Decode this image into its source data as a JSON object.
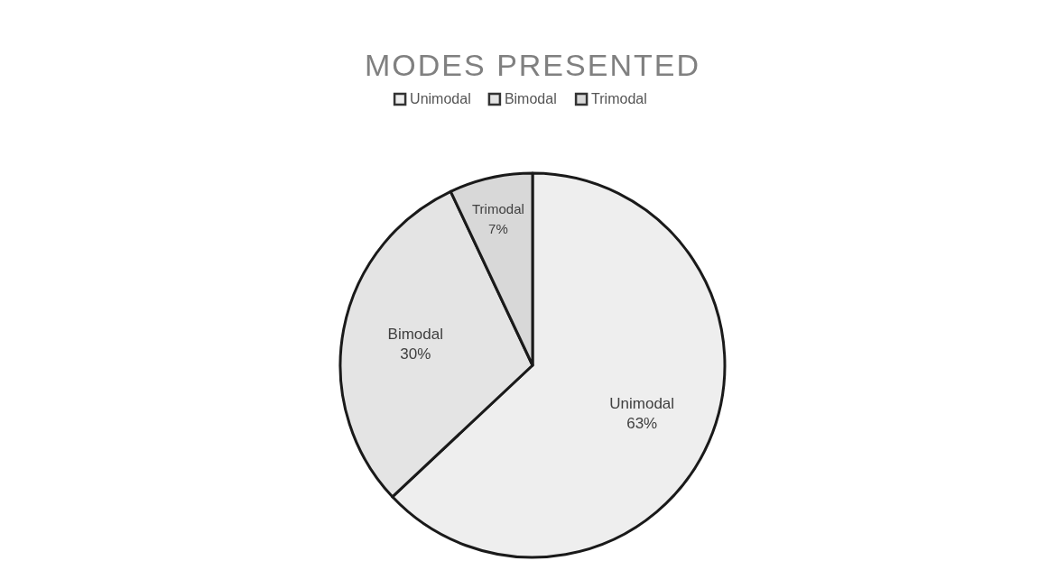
{
  "chart_data": {
    "type": "pie",
    "title": "MODES PRESENTED",
    "categories": [
      "Unimodal",
      "Bimodal",
      "Trimodal"
    ],
    "values": [
      63,
      30,
      7
    ],
    "colors": [
      "#eeeeee",
      "#e4e4e4",
      "#d8d8d8"
    ],
    "value_labels": [
      "63%",
      "30%",
      "7%"
    ],
    "legend": "top"
  }
}
